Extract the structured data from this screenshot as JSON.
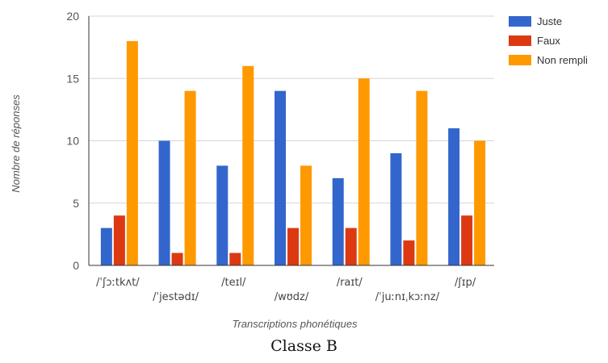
{
  "chart_data": {
    "type": "bar",
    "categories": [
      "/ˈʃɔːtkʌt/",
      "/ˈjestədɪ/",
      "/teɪl/",
      "/wʊdz/",
      "/raɪt/",
      "/ˈjuːnɪˌkɔːnz/",
      "/ʃɪp/"
    ],
    "series": [
      {
        "name": "Juste",
        "color": "#3366CC",
        "values": [
          3,
          10,
          8,
          14,
          7,
          9,
          11
        ]
      },
      {
        "name": "Faux",
        "color": "#DC3912",
        "values": [
          4,
          1,
          1,
          3,
          3,
          2,
          4
        ]
      },
      {
        "name": "Non rempli",
        "color": "#FF9900",
        "values": [
          18,
          14,
          16,
          8,
          15,
          14,
          10
        ]
      }
    ],
    "xlabel": "Transcriptions phonétiques",
    "ylabel": "Nombre de réponses",
    "ylim": [
      0,
      20
    ],
    "yticks": [
      0,
      5,
      10,
      15,
      20
    ],
    "grid": true,
    "legend_position": "right"
  },
  "caption": "Classe B"
}
